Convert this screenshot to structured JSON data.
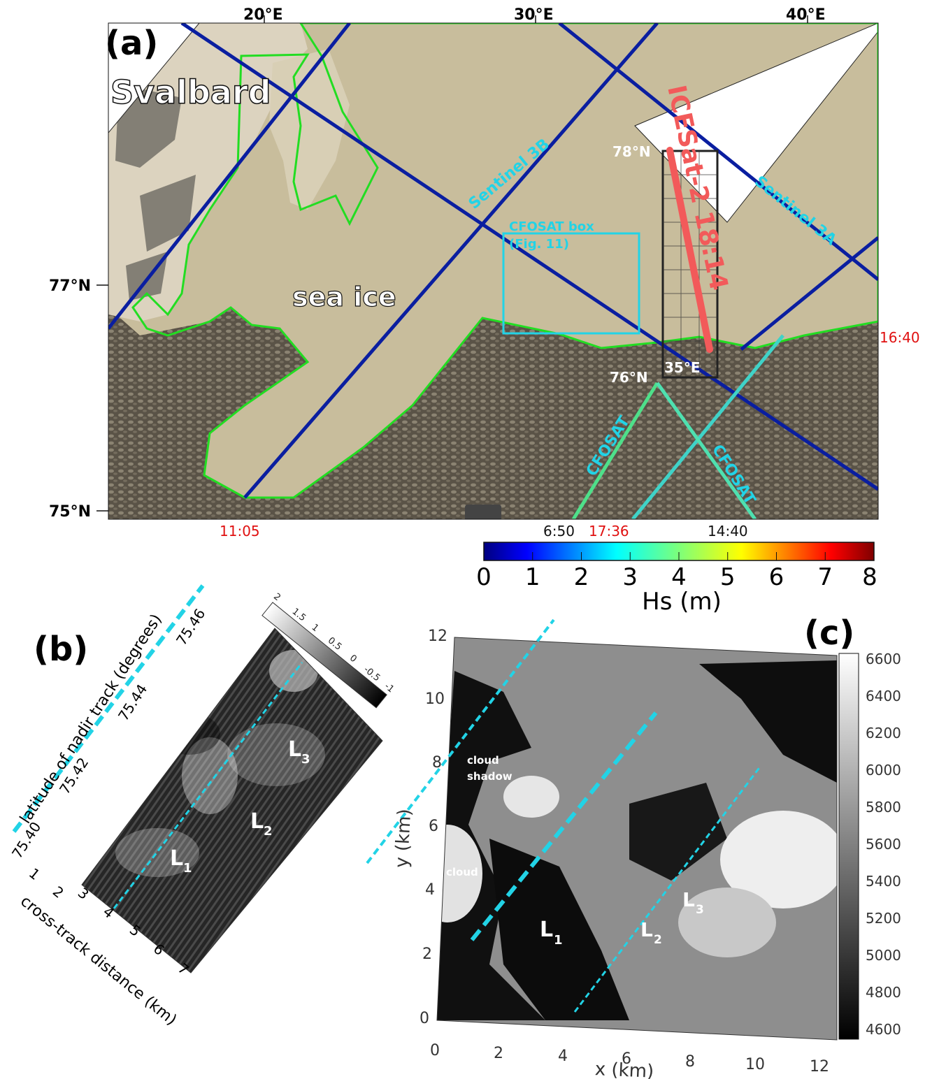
{
  "panel_a": {
    "panel_label": "(a)",
    "region_label": "Svalbard",
    "sea_ice_label": "sea ice",
    "lon_ticks": [
      "20°E",
      "30°E",
      "40°E"
    ],
    "lat_ticks": [
      "77°N",
      "75°N"
    ],
    "track_labels": {
      "s3b": "Sentinel 3B",
      "s3a": "Sentinel 3A",
      "cfosat_1": "CFOSAT",
      "cfosat_2": "CFOSAT",
      "icesat": "ICESat-2 18:14"
    },
    "box_label_1": "CFOSAT box",
    "box_label_2": "(Fig. 11)",
    "inset_labels": {
      "lat_top": "78°N",
      "lat_bottom": "76°N",
      "lon": "35°E"
    },
    "times_red": {
      "t1105": "11:05",
      "t1640": "16:40",
      "t1736": "17:36"
    },
    "times_black": {
      "t650": "6:50",
      "t1440": "14:40"
    },
    "colors": {
      "ice_edge": "#22dd22",
      "track_cyan": "#22d3e6",
      "icesat": "#f25a5a",
      "time_red": "#e01010"
    }
  },
  "colorbar_hs": {
    "label": "Hs (m)",
    "ticks": [
      "0",
      "1",
      "2",
      "3",
      "4",
      "5",
      "6",
      "7",
      "8"
    ],
    "range": [
      0,
      8
    ],
    "colormap": "jet"
  },
  "panel_b": {
    "panel_label": "(b)",
    "lat_axis_label": "latitude of nadir track (degrees)",
    "lat_ticks": [
      "75.40",
      "75.42",
      "75.44",
      "75.46"
    ],
    "cross_axis_label": "cross-track distance (km)",
    "cross_ticks": [
      "1",
      "2",
      "3",
      "4",
      "5",
      "6",
      "7"
    ],
    "colorbar_ticks": [
      "2",
      "1.5",
      "1",
      "0.5",
      "0",
      "-0.5",
      "-1"
    ],
    "features": {
      "l1": "L",
      "l1_sub": "1",
      "l2": "L",
      "l2_sub": "2",
      "l3": "L",
      "l3_sub": "3"
    }
  },
  "panel_c": {
    "panel_label": "(c)",
    "xlabel": "x (km)",
    "ylabel": "y (km)",
    "x_ticks": [
      "0",
      "2",
      "4",
      "6",
      "8",
      "10",
      "12"
    ],
    "y_ticks": [
      "0",
      "2",
      "4",
      "6",
      "8",
      "10",
      "12"
    ],
    "colorbar_ticks": [
      "6600",
      "6400",
      "6200",
      "6000",
      "5800",
      "5600",
      "5400",
      "5200",
      "5000",
      "4800",
      "4600"
    ],
    "annotations": {
      "cloud_shadow_1": "cloud",
      "cloud_shadow_2": "shadow",
      "cloud": "cloud"
    },
    "features": {
      "l1": "L",
      "l1_sub": "1",
      "l2": "L",
      "l2_sub": "2",
      "l3": "L",
      "l3_sub": "3"
    }
  }
}
